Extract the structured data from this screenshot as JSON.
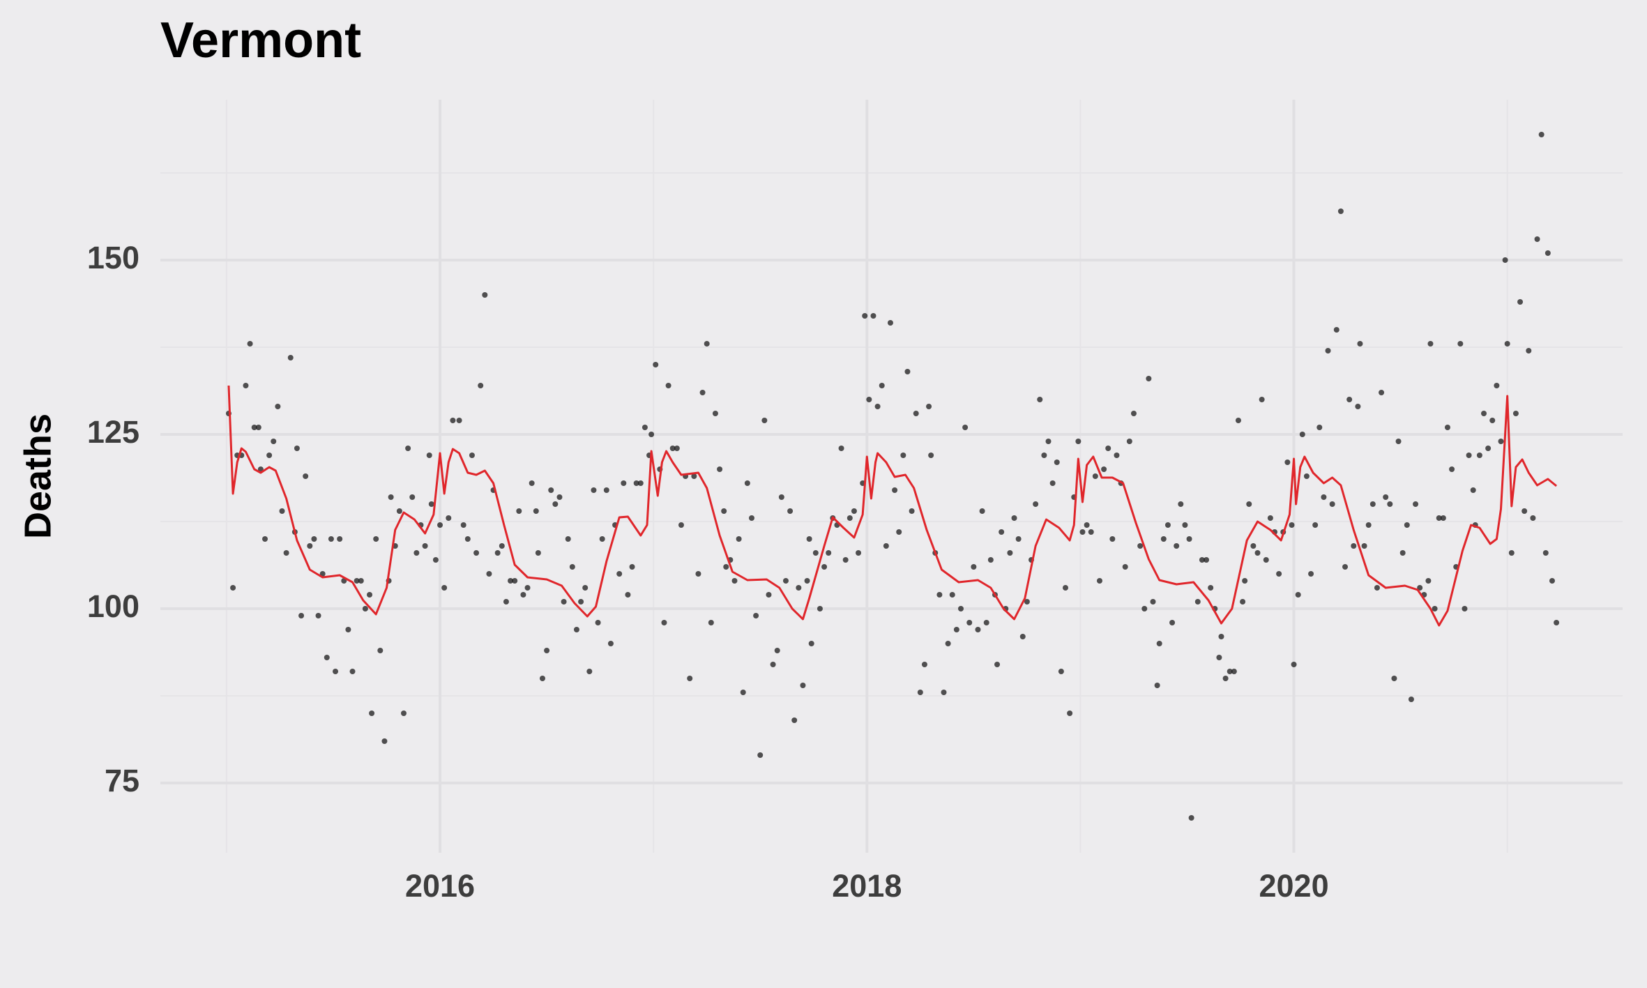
{
  "chart_data": {
    "type": "scatter",
    "title": "Vermont",
    "ylabel": "Deaths",
    "xlim": [
      2014.69,
      2021.54
    ],
    "ylim": [
      65,
      173
    ],
    "xticks": [
      2016,
      2018,
      2020
    ],
    "yticks": [
      75,
      100,
      125,
      150
    ],
    "xminor": [
      2015,
      2017,
      2019,
      2021
    ],
    "yminor": [
      87.5,
      112.5,
      137.5,
      162.5
    ],
    "grid": true,
    "points": {
      "color": "#1a1a1a",
      "x": [
        2015.01,
        2015.03,
        2015.05,
        2015.07,
        2015.09,
        2015.11,
        2015.13,
        2015.15,
        2015.16,
        2015.18,
        2015.2,
        2015.22,
        2015.24,
        2015.26,
        2015.28,
        2015.3,
        2015.32,
        2015.33,
        2015.35,
        2015.37,
        2015.39,
        2015.41,
        2015.43,
        2015.45,
        2015.47,
        2015.49,
        2015.51,
        2015.53,
        2015.55,
        2015.57,
        2015.59,
        2015.61,
        2015.63,
        2015.65,
        2015.67,
        2015.68,
        2015.7,
        2015.72,
        2015.74,
        2015.76,
        2015.77,
        2015.79,
        2015.81,
        2015.83,
        2015.85,
        2015.87,
        2015.89,
        2015.91,
        2015.93,
        2015.95,
        2015.96,
        2015.98,
        2016.0,
        2016.02,
        2016.04,
        2016.06,
        2016.09,
        2016.11,
        2016.13,
        2016.15,
        2016.17,
        2016.19,
        2016.21,
        2016.23,
        2016.25,
        2016.27,
        2016.29,
        2016.31,
        2016.33,
        2016.35,
        2016.37,
        2016.39,
        2016.41,
        2016.43,
        2016.45,
        2016.46,
        2016.48,
        2016.5,
        2016.52,
        2016.54,
        2016.56,
        2016.58,
        2016.6,
        2016.62,
        2016.64,
        2016.66,
        2016.68,
        2016.7,
        2016.72,
        2016.74,
        2016.76,
        2016.78,
        2016.8,
        2016.82,
        2016.84,
        2016.86,
        2016.88,
        2016.9,
        2016.92,
        2016.94,
        2016.96,
        2016.98,
        2016.99,
        2017.01,
        2017.03,
        2017.05,
        2017.07,
        2017.09,
        2017.11,
        2017.13,
        2017.15,
        2017.17,
        2017.19,
        2017.21,
        2017.23,
        2017.25,
        2017.27,
        2017.29,
        2017.31,
        2017.33,
        2017.34,
        2017.36,
        2017.38,
        2017.4,
        2017.42,
        2017.44,
        2017.46,
        2017.48,
        2017.5,
        2017.52,
        2017.54,
        2017.56,
        2017.58,
        2017.6,
        2017.62,
        2017.64,
        2017.66,
        2017.68,
        2017.7,
        2017.72,
        2017.73,
        2017.74,
        2017.76,
        2017.78,
        2017.8,
        2017.82,
        2017.84,
        2017.86,
        2017.88,
        2017.9,
        2017.92,
        2017.94,
        2017.96,
        2017.98,
        2017.99,
        2018.01,
        2018.03,
        2018.05,
        2018.07,
        2018.09,
        2018.11,
        2018.13,
        2018.15,
        2018.17,
        2018.19,
        2018.21,
        2018.23,
        2018.25,
        2018.27,
        2018.29,
        2018.3,
        2018.32,
        2018.34,
        2018.36,
        2018.38,
        2018.4,
        2018.42,
        2018.44,
        2018.46,
        2018.48,
        2018.5,
        2018.52,
        2018.54,
        2018.56,
        2018.58,
        2018.6,
        2018.61,
        2018.63,
        2018.65,
        2018.67,
        2018.69,
        2018.71,
        2018.73,
        2018.75,
        2018.77,
        2018.79,
        2018.81,
        2018.83,
        2018.85,
        2018.87,
        2018.89,
        2018.91,
        2018.93,
        2018.95,
        2018.97,
        2018.99,
        2019.01,
        2019.03,
        2019.05,
        2019.07,
        2019.09,
        2019.11,
        2019.13,
        2019.15,
        2019.17,
        2019.19,
        2019.21,
        2019.23,
        2019.25,
        2019.28,
        2019.3,
        2019.32,
        2019.34,
        2019.36,
        2019.37,
        2019.39,
        2019.41,
        2019.43,
        2019.45,
        2019.47,
        2019.49,
        2019.51,
        2019.52,
        2019.55,
        2019.57,
        2019.59,
        2019.61,
        2019.63,
        2019.65,
        2019.66,
        2019.68,
        2019.7,
        2019.72,
        2019.74,
        2019.76,
        2019.77,
        2019.79,
        2019.81,
        2019.83,
        2019.85,
        2019.87,
        2019.89,
        2019.91,
        2019.93,
        2019.95,
        2019.97,
        2019.99,
        2020.0,
        2020.02,
        2020.04,
        2020.06,
        2020.08,
        2020.1,
        2020.12,
        2020.14,
        2020.16,
        2020.18,
        2020.2,
        2020.22,
        2020.24,
        2020.26,
        2020.28,
        2020.3,
        2020.31,
        2020.33,
        2020.35,
        2020.37,
        2020.39,
        2020.41,
        2020.43,
        2020.45,
        2020.47,
        2020.49,
        2020.51,
        2020.53,
        2020.55,
        2020.57,
        2020.59,
        2020.61,
        2020.63,
        2020.64,
        2020.66,
        2020.68,
        2020.7,
        2020.72,
        2020.74,
        2020.76,
        2020.78,
        2020.8,
        2020.82,
        2020.84,
        2020.85,
        2020.87,
        2020.89,
        2020.91,
        2020.93,
        2020.95,
        2020.97,
        2020.99,
        2021.0,
        2021.02,
        2021.04,
        2021.06,
        2021.08,
        2021.1,
        2021.12,
        2021.14,
        2021.16,
        2021.18,
        2021.19,
        2021.21,
        2021.23
      ],
      "values": [
        128,
        103,
        122,
        122,
        132,
        138,
        126,
        126,
        120,
        110,
        122,
        124,
        129,
        114,
        108,
        136,
        111,
        123,
        99,
        119,
        109,
        110,
        99,
        105,
        93,
        110,
        91,
        110,
        104,
        97,
        91,
        104,
        104,
        100,
        102,
        85,
        110,
        94,
        81,
        104,
        116,
        109,
        114,
        85,
        123,
        116,
        108,
        112,
        109,
        122,
        115,
        107,
        112,
        103,
        113,
        127,
        127,
        112,
        110,
        122,
        108,
        132,
        145,
        105,
        117,
        108,
        109,
        101,
        104,
        104,
        114,
        102,
        103,
        118,
        114,
        108,
        90,
        94,
        117,
        115,
        116,
        101,
        110,
        106,
        97,
        101,
        103,
        91,
        117,
        98,
        110,
        117,
        95,
        112,
        105,
        118,
        102,
        106,
        118,
        118,
        126,
        122,
        125,
        135,
        120,
        98,
        132,
        123,
        123,
        112,
        119,
        90,
        119,
        105,
        131,
        138,
        98,
        128,
        120,
        114,
        106,
        107,
        104,
        110,
        88,
        118,
        113,
        99,
        79,
        127,
        102,
        92,
        94,
        116,
        104,
        114,
        84,
        103,
        89,
        104,
        110,
        95,
        108,
        100,
        106,
        108,
        113,
        112,
        123,
        107,
        113,
        114,
        108,
        118,
        142,
        130,
        142,
        129,
        132,
        109,
        141,
        117,
        111,
        122,
        134,
        114,
        128,
        88,
        92,
        129,
        122,
        108,
        102,
        88,
        95,
        102,
        97,
        100,
        126,
        98,
        106,
        97,
        114,
        98,
        107,
        102,
        92,
        111,
        100,
        108,
        113,
        110,
        96,
        101,
        107,
        115,
        130,
        122,
        124,
        118,
        121,
        91,
        103,
        85,
        116,
        124,
        111,
        112,
        111,
        119,
        104,
        120,
        123,
        110,
        122,
        118,
        106,
        124,
        128,
        109,
        100,
        133,
        101,
        89,
        95,
        110,
        112,
        98,
        109,
        115,
        112,
        110,
        70,
        101,
        107,
        107,
        103,
        100,
        93,
        96,
        90,
        91,
        91,
        127,
        101,
        104,
        115,
        109,
        108,
        130,
        107,
        113,
        111,
        105,
        111,
        121,
        112,
        92,
        102,
        125,
        119,
        105,
        112,
        126,
        116,
        137,
        115,
        140,
        157,
        106,
        130,
        109,
        129,
        138,
        109,
        112,
        115,
        103,
        131,
        116,
        115,
        90,
        124,
        108,
        112,
        87,
        115,
        103,
        102,
        104,
        138,
        100,
        113,
        113,
        126,
        120,
        106,
        138,
        100,
        122,
        117,
        112,
        122,
        128,
        123,
        127,
        132,
        124,
        150,
        138,
        108,
        128,
        144,
        114,
        137,
        113,
        153,
        168,
        108,
        151,
        104,
        98
      ]
    },
    "trend": {
      "color": "#e0262b",
      "x": [
        2015.01,
        2015.03,
        2015.05,
        2015.07,
        2015.09,
        2015.13,
        2015.16,
        2015.2,
        2015.23,
        2015.28,
        2015.33,
        2015.39,
        2015.45,
        2015.53,
        2015.59,
        2015.64,
        2015.7,
        2015.75,
        2015.79,
        2015.83,
        2015.88,
        2015.93,
        2015.97,
        2016.0,
        2016.02,
        2016.04,
        2016.06,
        2016.09,
        2016.13,
        2016.17,
        2016.21,
        2016.25,
        2016.3,
        2016.35,
        2016.41,
        2016.5,
        2016.57,
        2016.63,
        2016.69,
        2016.73,
        2016.78,
        2016.84,
        2016.88,
        2016.94,
        2016.97,
        2016.99,
        2017.02,
        2017.04,
        2017.06,
        2017.09,
        2017.13,
        2017.21,
        2017.25,
        2017.31,
        2017.37,
        2017.44,
        2017.53,
        2017.59,
        2017.65,
        2017.7,
        2017.73,
        2017.8,
        2017.84,
        2017.89,
        2017.94,
        2017.98,
        2018.0,
        2018.02,
        2018.04,
        2018.05,
        2018.09,
        2018.13,
        2018.18,
        2018.22,
        2018.28,
        2018.35,
        2018.43,
        2018.52,
        2018.58,
        2018.64,
        2018.69,
        2018.74,
        2018.79,
        2018.84,
        2018.9,
        2018.95,
        2018.97,
        2018.99,
        2019.01,
        2019.03,
        2019.06,
        2019.1,
        2019.15,
        2019.2,
        2019.26,
        2019.32,
        2019.37,
        2019.45,
        2019.53,
        2019.6,
        2019.66,
        2019.71,
        2019.78,
        2019.83,
        2019.89,
        2019.94,
        2019.98,
        2020.0,
        2020.01,
        2020.03,
        2020.05,
        2020.09,
        2020.14,
        2020.18,
        2020.22,
        2020.28,
        2020.35,
        2020.43,
        2020.52,
        2020.58,
        2020.64,
        2020.68,
        2020.72,
        2020.79,
        2020.83,
        2020.87,
        2020.92,
        2020.95,
        2020.97,
        2021.0,
        2021.02,
        2021.04,
        2021.07,
        2021.1,
        2021.14,
        2021.19,
        2021.23
      ],
      "values": [
        132,
        116.5,
        121,
        123,
        122.5,
        120,
        119.5,
        120.3,
        119.8,
        115.8,
        109.8,
        105.6,
        104.5,
        104.8,
        103.8,
        101.2,
        99.2,
        103,
        111.3,
        113.8,
        112.8,
        110.8,
        113.5,
        122.3,
        116.5,
        121,
        122.9,
        122.3,
        119.5,
        119.2,
        119.8,
        118,
        112,
        106.3,
        104.5,
        104.2,
        103.3,
        100.8,
        98.9,
        100.3,
        106.8,
        113.1,
        113.2,
        110.5,
        112,
        122.6,
        116.2,
        121,
        122.6,
        121,
        119.2,
        119.5,
        117.3,
        110.5,
        105.3,
        104.1,
        104.2,
        103,
        100,
        98.5,
        101.5,
        109,
        113.1,
        111.6,
        110.2,
        113.5,
        121.8,
        115.8,
        121,
        122.3,
        121,
        118.9,
        119.2,
        117.3,
        111.3,
        105.6,
        103.8,
        104.1,
        103,
        100,
        98.5,
        101.5,
        109,
        112.8,
        111.6,
        109.8,
        112,
        121.5,
        115.3,
        120.6,
        121.8,
        118.8,
        118.8,
        118,
        112.3,
        107.1,
        104.1,
        103.5,
        103.8,
        101.2,
        97.9,
        100,
        109.8,
        112.5,
        111.3,
        109.8,
        113.5,
        121.5,
        115,
        120.3,
        121.8,
        119.5,
        118,
        118.8,
        117.7,
        111.3,
        104.8,
        103,
        103.3,
        102.7,
        100,
        97.6,
        99.7,
        108.3,
        112,
        111.6,
        109.3,
        110,
        114.3,
        130.5,
        114.7,
        120.3,
        121.4,
        119.5,
        117.7,
        118.6,
        117.6
      ]
    }
  }
}
